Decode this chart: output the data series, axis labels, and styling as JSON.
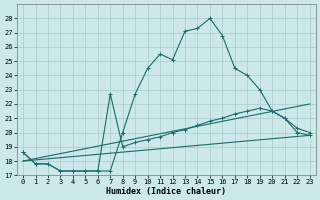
{
  "xlabel": "Humidex (Indice chaleur)",
  "xlim": [
    -0.5,
    23.5
  ],
  "ylim": [
    17,
    29
  ],
  "yticks": [
    17,
    18,
    19,
    20,
    21,
    22,
    23,
    24,
    25,
    26,
    27,
    28
  ],
  "xticks": [
    0,
    1,
    2,
    3,
    4,
    5,
    6,
    7,
    8,
    9,
    10,
    11,
    12,
    13,
    14,
    15,
    16,
    17,
    18,
    19,
    20,
    21,
    22,
    23
  ],
  "bg_color": "#cce8e8",
  "line_color": "#1a6b6b",
  "grid_color": "#b0d0d0",
  "curve1_x": [
    0,
    1,
    2,
    3,
    4,
    5,
    6,
    7,
    8,
    9,
    10,
    11,
    12,
    13,
    14,
    15,
    16,
    17,
    18,
    19,
    20,
    21,
    22,
    23
  ],
  "curve1_y": [
    18.6,
    17.8,
    17.8,
    17.3,
    17.3,
    17.3,
    17.3,
    17.3,
    20.0,
    22.7,
    24.5,
    25.5,
    25.1,
    27.1,
    27.3,
    28.0,
    26.8,
    24.5,
    24.0,
    23.0,
    21.5,
    21.0,
    20.0,
    19.8
  ],
  "curve2_x": [
    0,
    1,
    2,
    3,
    4,
    5,
    6,
    7,
    8,
    9,
    10,
    11,
    12,
    13,
    14,
    15,
    16,
    17,
    18,
    19,
    20,
    21,
    22,
    23
  ],
  "curve2_y": [
    18.6,
    17.8,
    17.8,
    17.3,
    17.3,
    17.3,
    17.3,
    22.7,
    19.0,
    19.3,
    19.5,
    19.7,
    20.0,
    20.2,
    20.5,
    20.8,
    21.0,
    21.3,
    21.5,
    21.7,
    21.5,
    21.0,
    20.3,
    20.0
  ],
  "line3_x": [
    0,
    23
  ],
  "line3_y": [
    18.0,
    22.0
  ],
  "line4_x": [
    0,
    23
  ],
  "line4_y": [
    18.0,
    19.8
  ]
}
